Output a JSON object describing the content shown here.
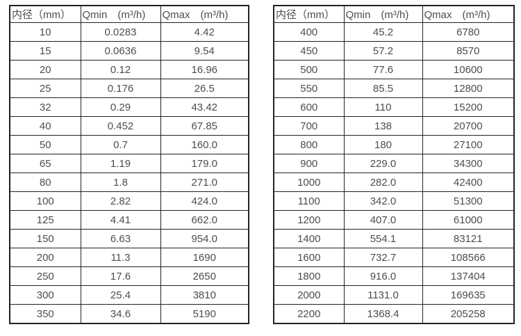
{
  "colors": {
    "border": "#212121",
    "text": "#4d4d4d",
    "background": "#ffffff"
  },
  "tables": [
    {
      "name": "small-diameter-flow-table",
      "headers": [
        "内径（mm）",
        "Qmin　(m³/h)",
        "Qmax　(m³/h)"
      ],
      "rows": [
        [
          "10",
          "0.0283",
          "4.42"
        ],
        [
          "15",
          "0.0636",
          "9.54"
        ],
        [
          "20",
          "0.12",
          "16.96"
        ],
        [
          "25",
          "0.176",
          "26.5"
        ],
        [
          "32",
          "0.29",
          "43.42"
        ],
        [
          "40",
          "0.452",
          "67.85"
        ],
        [
          "50",
          "0.7",
          "160.0"
        ],
        [
          "65",
          "1.19",
          "179.0"
        ],
        [
          "80",
          "1.8",
          "271.0"
        ],
        [
          "100",
          "2.82",
          "424.0"
        ],
        [
          "125",
          "4.41",
          "662.0"
        ],
        [
          "150",
          "6.63",
          "954.0"
        ],
        [
          "200",
          "11.3",
          "1690"
        ],
        [
          "250",
          "17.6",
          "2650"
        ],
        [
          "300",
          "25.4",
          "3810"
        ],
        [
          "350",
          "34.6",
          "5190"
        ]
      ]
    },
    {
      "name": "large-diameter-flow-table",
      "headers": [
        "内径（mm）",
        "Qmin　(m³/h)",
        "Qmax　(m³/h)"
      ],
      "rows": [
        [
          "400",
          "45.2",
          "6780"
        ],
        [
          "450",
          "57.2",
          "8570"
        ],
        [
          "500",
          "77.6",
          "10600"
        ],
        [
          "550",
          "85.5",
          "12800"
        ],
        [
          "600",
          "110",
          "15200"
        ],
        [
          "700",
          "138",
          "20700"
        ],
        [
          "800",
          "180",
          "27100"
        ],
        [
          "900",
          "229.0",
          "34300"
        ],
        [
          "1000",
          "282.0",
          "42400"
        ],
        [
          "1100",
          "342.0",
          "51300"
        ],
        [
          "1200",
          "407.0",
          "61000"
        ],
        [
          "1400",
          "554.1",
          "83121"
        ],
        [
          "1600",
          "732.7",
          "108566"
        ],
        [
          "1800",
          "916.0",
          "137404"
        ],
        [
          "2000",
          "1131.0",
          "169635"
        ],
        [
          "2200",
          "1368.4",
          "205258"
        ]
      ]
    }
  ]
}
